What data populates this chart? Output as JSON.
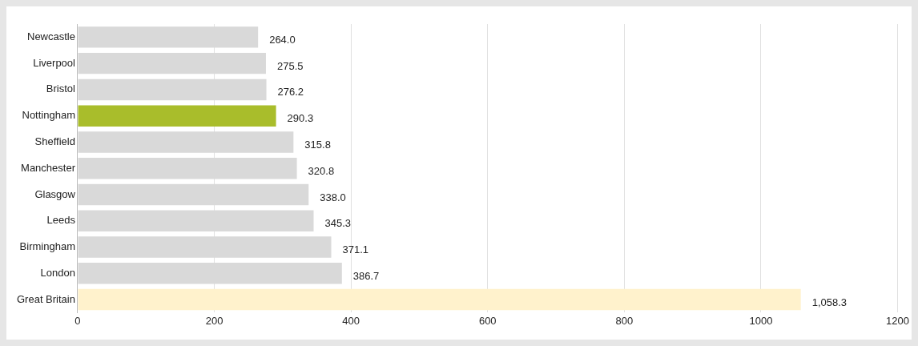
{
  "chart_data": {
    "type": "bar",
    "orientation": "horizontal",
    "categories": [
      "Newcastle",
      "Liverpool",
      "Bristol",
      "Nottingham",
      "Sheffield",
      "Manchester",
      "Glasgow",
      "Leeds",
      "Birmingham",
      "London",
      "Great Britain"
    ],
    "values": [
      264.0,
      275.5,
      276.2,
      290.3,
      315.8,
      320.8,
      338.0,
      345.3,
      371.1,
      386.7,
      1058.3
    ],
    "colors": [
      "#d9d9d9",
      "#d9d9d9",
      "#d9d9d9",
      "#a9bd2b",
      "#d9d9d9",
      "#d9d9d9",
      "#d9d9d9",
      "#d9d9d9",
      "#d9d9d9",
      "#d9d9d9",
      "#fff2cc"
    ],
    "value_labels": [
      "264.0",
      "275.5",
      "276.2",
      "290.3",
      "315.8",
      "320.8",
      "338.0",
      "345.3",
      "371.1",
      "386.7",
      "1,058.3"
    ],
    "xlim": [
      0,
      1200
    ],
    "xticks": [
      0,
      200,
      400,
      600,
      800,
      1000,
      1200
    ],
    "grid": "x",
    "legend": false
  }
}
